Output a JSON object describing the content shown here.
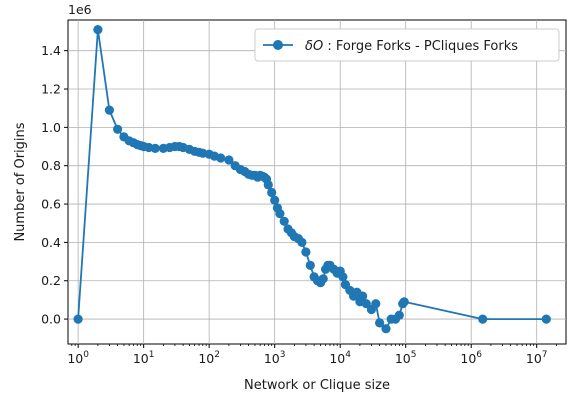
{
  "chart_data": {
    "type": "line",
    "x_scale": "log",
    "xlabel": "Network or Clique size",
    "ylabel": "Number of Origins",
    "y_offset_label": "1e6",
    "xlim": [
      0.7,
      28000000
    ],
    "ylim": [
      -0.13,
      1.56
    ],
    "grid": true,
    "legend_position": "top-right",
    "x_tick_labels": [
      {
        "base": "10",
        "exp": "0",
        "value": 1
      },
      {
        "base": "10",
        "exp": "1",
        "value": 10
      },
      {
        "base": "10",
        "exp": "2",
        "value": 100
      },
      {
        "base": "10",
        "exp": "3",
        "value": 1000
      },
      {
        "base": "10",
        "exp": "4",
        "value": 10000
      },
      {
        "base": "10",
        "exp": "5",
        "value": 100000
      },
      {
        "base": "10",
        "exp": "6",
        "value": 1000000
      },
      {
        "base": "10",
        "exp": "7",
        "value": 10000000
      }
    ],
    "y_tick_labels": [
      {
        "label": "0.0",
        "value": 0.0
      },
      {
        "label": "0.2",
        "value": 0.2
      },
      {
        "label": "0.4",
        "value": 0.4
      },
      {
        "label": "0.6",
        "value": 0.6
      },
      {
        "label": "0.8",
        "value": 0.8
      },
      {
        "label": "1.0",
        "value": 1.0
      },
      {
        "label": "1.2",
        "value": 1.2
      },
      {
        "label": "1.4",
        "value": 1.4
      }
    ],
    "series": [
      {
        "name_symbol": "δO",
        "name_text": " : Forge Forks - PCliques Forks",
        "color": "#1f77b4",
        "marker": "circle",
        "x": [
          1,
          2,
          3,
          4,
          5,
          6,
          7,
          8,
          9,
          10,
          12,
          15,
          20,
          25,
          30,
          35,
          40,
          50,
          60,
          70,
          80,
          100,
          120,
          150,
          200,
          250,
          300,
          350,
          400,
          450,
          500,
          550,
          600,
          650,
          700,
          750,
          800,
          900,
          1000,
          1100,
          1200,
          1400,
          1600,
          1800,
          2000,
          2300,
          2600,
          3000,
          3500,
          4000,
          4500,
          5000,
          5500,
          6000,
          6500,
          7000,
          8000,
          9000,
          10000,
          11000,
          12000,
          14000,
          16000,
          18000,
          20000,
          22000,
          25000,
          30000,
          35000,
          40000,
          50000,
          60000,
          70000,
          80000,
          90000,
          95000,
          1500000,
          14000000
        ],
        "y": [
          0.0,
          1.51,
          1.09,
          0.99,
          0.95,
          0.93,
          0.92,
          0.91,
          0.905,
          0.9,
          0.895,
          0.89,
          0.89,
          0.895,
          0.9,
          0.9,
          0.895,
          0.885,
          0.875,
          0.87,
          0.865,
          0.86,
          0.85,
          0.84,
          0.83,
          0.8,
          0.78,
          0.77,
          0.755,
          0.75,
          0.75,
          0.74,
          0.75,
          0.745,
          0.74,
          0.73,
          0.7,
          0.66,
          0.62,
          0.58,
          0.55,
          0.51,
          0.47,
          0.45,
          0.43,
          0.42,
          0.4,
          0.35,
          0.28,
          0.22,
          0.2,
          0.19,
          0.21,
          0.26,
          0.28,
          0.28,
          0.26,
          0.24,
          0.25,
          0.22,
          0.18,
          0.15,
          0.12,
          0.14,
          0.09,
          0.12,
          0.08,
          0.05,
          0.08,
          -0.02,
          -0.05,
          0.0,
          0.0,
          0.02,
          0.08,
          0.09,
          0.0,
          0.0
        ]
      }
    ]
  }
}
